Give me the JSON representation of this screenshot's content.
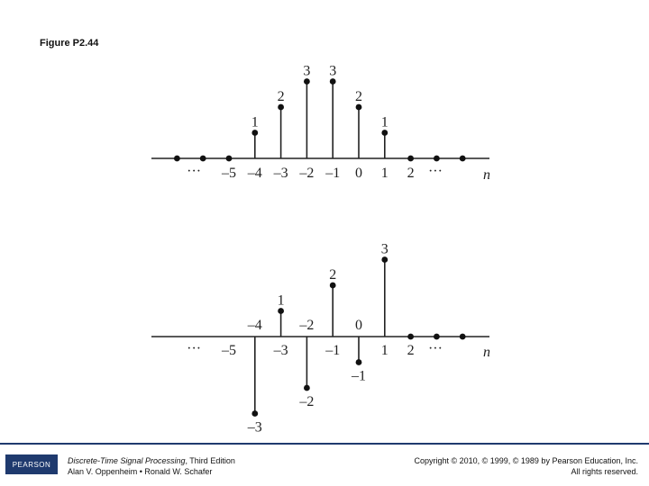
{
  "figure_title": "Figure P2.44",
  "chart_data": [
    {
      "type": "stem",
      "xlabel": "n",
      "tick_labels": [
        {
          "n": -5,
          "text": "–5"
        },
        {
          "n": -4,
          "text": "–4"
        },
        {
          "n": -3,
          "text": "–3"
        },
        {
          "n": -2,
          "text": "–2"
        },
        {
          "n": -1,
          "text": "–1"
        },
        {
          "n": 0,
          "text": "0"
        },
        {
          "n": 1,
          "text": "1"
        },
        {
          "n": 2,
          "text": "2"
        }
      ],
      "ellipsis": [
        "···",
        "···"
      ],
      "points": [
        {
          "n": -7,
          "v": 0,
          "label": ""
        },
        {
          "n": -6,
          "v": 0,
          "label": ""
        },
        {
          "n": -5,
          "v": 0,
          "label": ""
        },
        {
          "n": -4,
          "v": 1,
          "label": "1"
        },
        {
          "n": -3,
          "v": 2,
          "label": "2"
        },
        {
          "n": -2,
          "v": 3,
          "label": "3"
        },
        {
          "n": -1,
          "v": 3,
          "label": "3"
        },
        {
          "n": 0,
          "v": 2,
          "label": "2"
        },
        {
          "n": 1,
          "v": 1,
          "label": "1"
        },
        {
          "n": 2,
          "v": 0,
          "label": ""
        },
        {
          "n": 3,
          "v": 0,
          "label": ""
        },
        {
          "n": 4,
          "v": 0,
          "label": ""
        }
      ]
    },
    {
      "type": "stem",
      "xlabel": "n",
      "tick_labels": [
        {
          "n": -5,
          "text": "–5",
          "side": "below"
        },
        {
          "n": -4,
          "text": "–4",
          "side": "above"
        },
        {
          "n": -3,
          "text": "–3",
          "side": "below"
        },
        {
          "n": -2,
          "text": "–2",
          "side": "above"
        },
        {
          "n": -1,
          "text": "–1",
          "side": "below"
        },
        {
          "n": 0,
          "text": "0",
          "side": "above"
        },
        {
          "n": 1,
          "text": "1",
          "side": "below"
        },
        {
          "n": 2,
          "text": "2",
          "side": "below"
        }
      ],
      "ellipsis": [
        "···",
        "···"
      ],
      "points": [
        {
          "n": -4,
          "v": -3,
          "label": "–3"
        },
        {
          "n": -3,
          "v": 1,
          "label": "1"
        },
        {
          "n": -2,
          "v": -2,
          "label": "–2"
        },
        {
          "n": -1,
          "v": 2,
          "label": "2"
        },
        {
          "n": 0,
          "v": -1,
          "label": "–1"
        },
        {
          "n": 1,
          "v": 3,
          "label": "3"
        },
        {
          "n": 2,
          "v": 0,
          "label": ""
        },
        {
          "n": 3,
          "v": 0,
          "label": ""
        },
        {
          "n": 4,
          "v": 0,
          "label": ""
        }
      ]
    }
  ],
  "footer": {
    "logo": "PEARSON",
    "book_title": "Discrete-Time Signal Processing",
    "book_edition": ", Third Edition",
    "authors": "Alan V. Oppenheim • Ronald W. Schafer",
    "copyright": "Copyright © 2010, © 1999, © 1989 by Pearson Education, Inc.",
    "rights": "All rights reserved."
  }
}
